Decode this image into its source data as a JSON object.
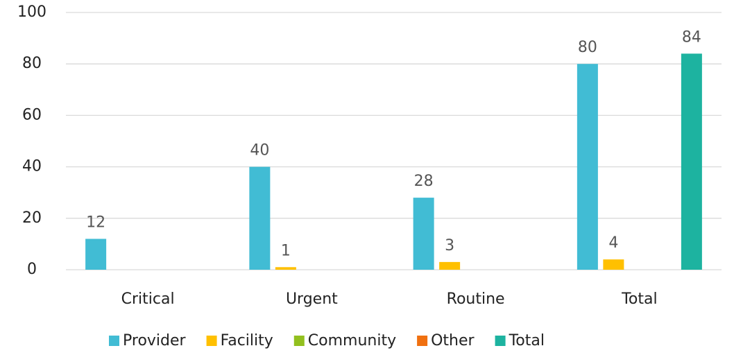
{
  "chart_data": {
    "type": "bar",
    "categories": [
      "Critical",
      "Urgent",
      "Routine",
      "Total"
    ],
    "series": [
      {
        "name": "Provider",
        "color": "#41bcd4",
        "values": [
          12,
          40,
          28,
          80
        ]
      },
      {
        "name": "Facility",
        "color": "#ffc000",
        "values": [
          null,
          1,
          3,
          4
        ]
      },
      {
        "name": "Community",
        "color": "#92c01f",
        "values": [
          null,
          null,
          null,
          null
        ]
      },
      {
        "name": "Other",
        "color": "#f07010",
        "values": [
          null,
          null,
          null,
          null
        ]
      },
      {
        "name": "Total",
        "color": "#1db3a0",
        "values": [
          null,
          null,
          null,
          84
        ]
      }
    ],
    "ylim": [
      0,
      100
    ],
    "yticks": [
      0,
      20,
      40,
      60,
      80,
      100
    ],
    "grid": true,
    "legend": "bottom"
  }
}
